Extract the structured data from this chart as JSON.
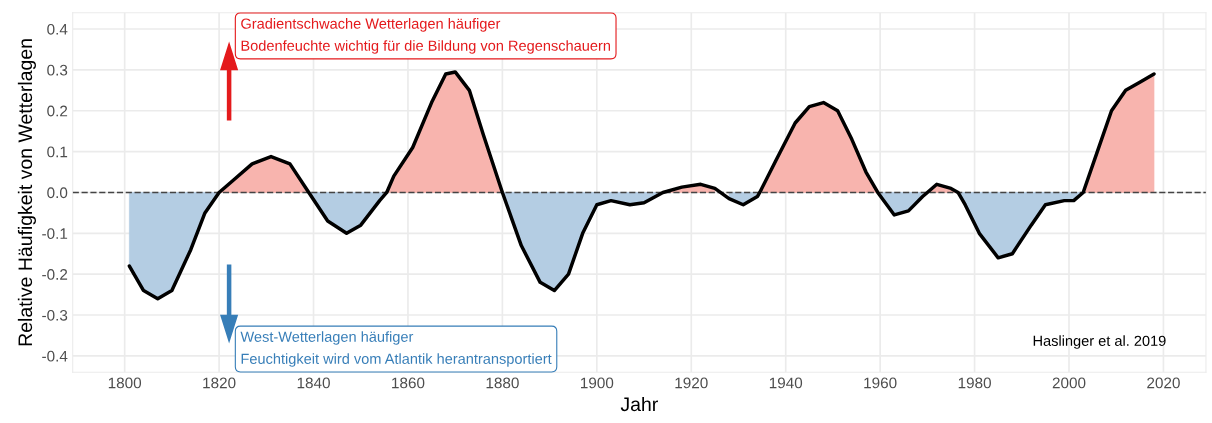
{
  "chart_data": {
    "type": "line",
    "xlabel": "Jahr",
    "ylabel": "Relative Häufigkeit von Wetterlagen",
    "x": [
      1801,
      1804,
      1807,
      1810,
      1814,
      1817,
      1820,
      1823,
      1827,
      1831,
      1835,
      1839,
      1843,
      1847,
      1850,
      1854,
      1855.5,
      1857,
      1861,
      1865,
      1868,
      1870,
      1873,
      1876,
      1880,
      1884,
      1888,
      1891,
      1894,
      1897,
      1900,
      1903,
      1907,
      1910,
      1914,
      1918,
      1922,
      1925,
      1928,
      1931,
      1934,
      1934.5,
      1938,
      1942,
      1945,
      1948,
      1951,
      1954,
      1957,
      1959.5,
      1963,
      1966,
      1969,
      1970,
      1972,
      1975,
      1976.5,
      1978,
      1981,
      1985,
      1988,
      1992,
      1995,
      1999,
      2001,
      2003,
      2006,
      2009,
      2012,
      2015,
      2018
    ],
    "series": [
      {
        "type": "area",
        "color": "#f8b4ae",
        "values": [
          null,
          null,
          null,
          null,
          null,
          null,
          0,
          0.03,
          0.07,
          0.088,
          0.07,
          0,
          null,
          null,
          null,
          null,
          0,
          0.04,
          0.11,
          0.22,
          0.29,
          0.295,
          0.25,
          0.14,
          0,
          null,
          null,
          null,
          null,
          null,
          null,
          null,
          null,
          null,
          0,
          0.013,
          0.02,
          0.01,
          null,
          null,
          null,
          0,
          0.08,
          0.17,
          0.21,
          0.22,
          0.2,
          0.13,
          0.05,
          0,
          null,
          null,
          null,
          0,
          0.02,
          0.01,
          0,
          null,
          null,
          null,
          null,
          null,
          null,
          null,
          null,
          0,
          0.1,
          0.2,
          0.25,
          0.27,
          0.29
        ]
      },
      {
        "type": "area",
        "color": "#b4cde3",
        "values": [
          -0.18,
          -0.24,
          -0.26,
          -0.24,
          -0.14,
          -0.05,
          0,
          null,
          null,
          null,
          null,
          0,
          -0.07,
          -0.1,
          -0.08,
          -0.02,
          0,
          null,
          null,
          null,
          null,
          null,
          null,
          null,
          0,
          -0.13,
          -0.22,
          -0.24,
          -0.2,
          -0.1,
          -0.03,
          -0.02,
          -0.03,
          -0.025,
          0,
          null,
          null,
          null,
          -0.015,
          -0.03,
          -0.01,
          0,
          null,
          null,
          null,
          null,
          null,
          null,
          null,
          0,
          -0.055,
          -0.045,
          -0.01,
          0,
          null,
          null,
          0,
          -0.03,
          -0.1,
          -0.16,
          -0.15,
          -0.08,
          -0.03,
          -0.02,
          -0.02,
          0,
          null,
          null,
          null,
          null,
          null
        ]
      },
      {
        "color": "#000000",
        "values": [
          -0.18,
          -0.24,
          -0.26,
          -0.24,
          -0.14,
          -0.05,
          0,
          0.03,
          0.07,
          0.088,
          0.07,
          0,
          -0.07,
          -0.1,
          -0.08,
          -0.02,
          0,
          0.04,
          0.11,
          0.22,
          0.29,
          0.295,
          0.25,
          0.14,
          0,
          -0.13,
          -0.22,
          -0.24,
          -0.2,
          -0.1,
          -0.03,
          -0.02,
          -0.03,
          -0.025,
          0,
          0.013,
          0.02,
          0.01,
          -0.015,
          -0.03,
          -0.01,
          0,
          0.08,
          0.17,
          0.21,
          0.22,
          0.2,
          0.13,
          0.05,
          0,
          -0.055,
          -0.045,
          -0.01,
          0,
          0.02,
          0.01,
          0,
          -0.03,
          -0.1,
          -0.16,
          -0.15,
          -0.08,
          -0.03,
          -0.02,
          -0.02,
          0,
          0.1,
          0.2,
          0.25,
          0.27,
          0.29
        ]
      }
    ],
    "xlim": [
      1789,
      2029
    ],
    "xticks": [
      1800,
      1820,
      1840,
      1860,
      1880,
      1900,
      1920,
      1940,
      1960,
      1980,
      2000,
      2020
    ],
    "ylim": [
      -0.44,
      0.44
    ],
    "yticks": [
      {
        "value": -0.4,
        "label": "-0.4"
      },
      {
        "value": -0.3,
        "label": "-0.3"
      },
      {
        "value": -0.2,
        "label": "-0.2"
      },
      {
        "value": -0.1,
        "label": "-0.1"
      },
      {
        "value": 0.0,
        "label": "0.0"
      },
      {
        "value": 0.1,
        "label": "0.1"
      },
      {
        "value": 0.2,
        "label": "0.2"
      },
      {
        "value": 0.3,
        "label": "0.3"
      },
      {
        "value": 0.4,
        "label": "0.4"
      }
    ],
    "ref_lines": [
      {
        "axis": "y",
        "value": 0,
        "color": "#444444",
        "line_style": "dashed"
      }
    ],
    "grid": true,
    "annotations": [
      "Gradientschwache Wetterlagen häufiger\nBodenfeuchte wichtig für die Bildung von Regenschauern",
      "West-Wetterlagen häufiger\nFeuchtigkeit wird vom Atlantik herantransportiert",
      "Haslinger et al. 2019"
    ]
  }
}
